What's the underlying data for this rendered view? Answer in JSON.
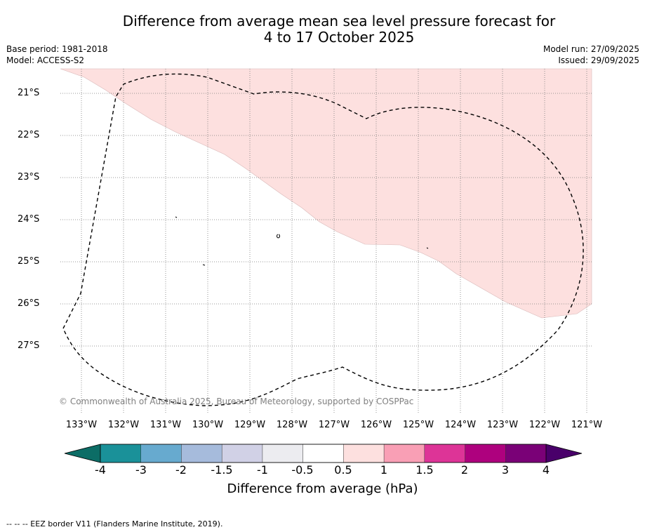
{
  "title": {
    "line1": "Difference from average mean sea level pressure forecast for",
    "line2": "4 to 17 October 2025"
  },
  "meta": {
    "base_period": "Base period: 1981-2018",
    "model": "Model: ACCESS-S2",
    "model_run": "Model run: 27/09/2025",
    "issued": "Issued: 29/09/2025"
  },
  "map": {
    "lat_labels": [
      "21°S",
      "22°S",
      "23°S",
      "24°S",
      "25°S",
      "26°S",
      "27°S"
    ],
    "lon_labels": [
      "133°W",
      "132°W",
      "131°W",
      "130°W",
      "129°W",
      "128°W",
      "127°W",
      "126°W",
      "125°W",
      "124°W",
      "123°W",
      "122°W",
      "121°W"
    ],
    "anomaly_region_category": "0.5 to 1",
    "anomaly_color": "#fde0df",
    "copyright": "© Commonwealth of Australia 2025, Bureau of Meteorology, supported by COSPPac"
  },
  "colorbar": {
    "ticks": [
      "-4",
      "-3",
      "-2",
      "-1.5",
      "-1",
      "-0.5",
      "0.5",
      "1",
      "1.5",
      "2",
      "3",
      "4"
    ],
    "colors": [
      "#1a9199",
      "#67aacf",
      "#a6bbdc",
      "#d1d1e6",
      "#ececf0",
      "#ffffff",
      "#fde0df",
      "#f99fb5",
      "#dd3497",
      "#ae017e",
      "#7a0177"
    ],
    "under_color": "#0c6d66",
    "over_color": "#49006a",
    "label": "Difference from average (hPa)"
  },
  "legend": {
    "eez": "--  --  -- EEZ border V11 (Flanders Marine Institute, 2019)."
  }
}
